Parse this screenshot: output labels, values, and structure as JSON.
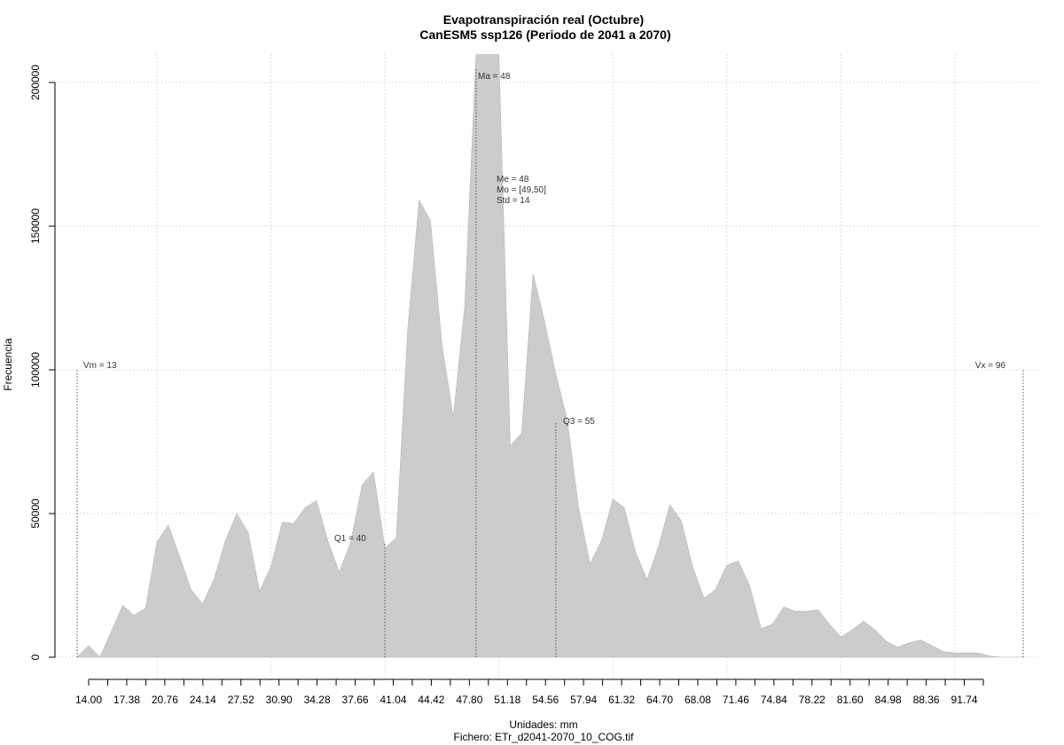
{
  "chart_data": {
    "type": "area",
    "title": "Evapotranspiración real (Octubre)",
    "subtitle": "CanESM5 ssp126 (Periodo de 2041 a 2070)",
    "xlabel": "Unidades: mm",
    "ylabel": "Frecuencia",
    "caption": "Fichero: ETr_d2041-2070_10_COG.tif",
    "xlim": [
      13,
      96
    ],
    "ylim": [
      0,
      210000
    ],
    "grid": true,
    "fill_color": "#cccccc",
    "y_ticks": [
      0,
      50000,
      100000,
      150000,
      200000
    ],
    "y_tick_labels": [
      "0",
      "50000",
      "100000",
      "150000",
      "200000"
    ],
    "x_grid": [
      20,
      30,
      40,
      50,
      60,
      70,
      80,
      90
    ],
    "x_ticks": [
      14.0,
      15.69,
      17.38,
      19.07,
      20.76,
      22.45,
      24.14,
      25.83,
      27.52,
      29.21,
      30.9,
      32.59,
      34.28,
      35.97,
      37.66,
      39.35,
      41.04,
      42.73,
      44.42,
      46.11,
      47.8,
      49.49,
      51.18,
      52.87,
      54.56,
      56.25,
      57.94,
      59.63,
      61.32,
      63.01,
      64.7,
      66.39,
      68.08,
      69.77,
      71.46,
      73.15,
      74.84,
      76.53,
      78.22,
      79.91,
      81.6,
      83.29,
      84.98,
      86.67,
      88.36,
      90.05,
      91.74,
      93.43
    ],
    "x_tick_labels": [
      "14.00",
      "17.38",
      "20.76",
      "24.14",
      "27.52",
      "30.90",
      "34.28",
      "37.66",
      "41.04",
      "44.42",
      "47.80",
      "51.18",
      "54.56",
      "57.94",
      "61.32",
      "64.70",
      "68.08",
      "71.46",
      "74.84",
      "78.22",
      "81.60",
      "84.98",
      "88.36",
      "91.74"
    ],
    "x_tick_label_values": [
      14.0,
      17.38,
      20.76,
      24.14,
      27.52,
      30.9,
      34.28,
      37.66,
      41.04,
      44.42,
      47.8,
      51.18,
      54.56,
      57.94,
      61.32,
      64.7,
      68.08,
      71.46,
      74.84,
      78.22,
      81.6,
      84.98,
      88.36,
      91.74
    ],
    "x": [
      13,
      14,
      15,
      16,
      17,
      18,
      19,
      20,
      21,
      22,
      23,
      24,
      25,
      26,
      27,
      28,
      29,
      30,
      31,
      32,
      33,
      34,
      35,
      36,
      37,
      38,
      39,
      40,
      41,
      42,
      43,
      44,
      45,
      46,
      47,
      48,
      49,
      50,
      51,
      52,
      53,
      54,
      55,
      56,
      57,
      58,
      59,
      60,
      61,
      62,
      63,
      64,
      65,
      66,
      67,
      68,
      69,
      70,
      71,
      72,
      73,
      74,
      75,
      76,
      77,
      78,
      79,
      80,
      81,
      82,
      83,
      84,
      85,
      86,
      87,
      88,
      89,
      90,
      91,
      92,
      93,
      94,
      95,
      96
    ],
    "y": [
      0,
      4000,
      0,
      9000,
      18000,
      14500,
      17000,
      40000,
      46000,
      35000,
      23500,
      18500,
      27000,
      40500,
      50000,
      43500,
      23000,
      31500,
      47000,
      46500,
      52000,
      54500,
      40500,
      29500,
      40000,
      60000,
      64500,
      38000,
      41500,
      114000,
      159000,
      152000,
      109000,
      83500,
      122000,
      210000,
      210000,
      210000,
      73500,
      78000,
      133500,
      117000,
      98500,
      82500,
      52000,
      32500,
      40500,
      55000,
      52000,
      36500,
      27000,
      38500,
      53000,
      47500,
      31500,
      20500,
      23500,
      32000,
      33500,
      25000,
      10000,
      11500,
      17500,
      16000,
      16000,
      16500,
      11500,
      7000,
      9500,
      12500,
      9500,
      5500,
      3500,
      5000,
      6000,
      4000,
      2000,
      1500,
      1500,
      1500,
      500,
      0,
      0,
      0
    ],
    "stat_lines": [
      {
        "value": 13,
        "height": 100000
      },
      {
        "value": 40,
        "height": 40000
      },
      {
        "value": 48,
        "height": 205000
      },
      {
        "value": 55,
        "height": 82000
      },
      {
        "value": 96,
        "height": 100000
      }
    ],
    "annotations": {
      "vm": "Vm = 13",
      "q1": "Q1 = 40",
      "ma": "Ma = 48",
      "me": "Me = 48",
      "mo": "Mo = [49,50]",
      "std": "Std = 14",
      "q3": "Q3 = 55",
      "vx": "Vx = 96"
    }
  }
}
